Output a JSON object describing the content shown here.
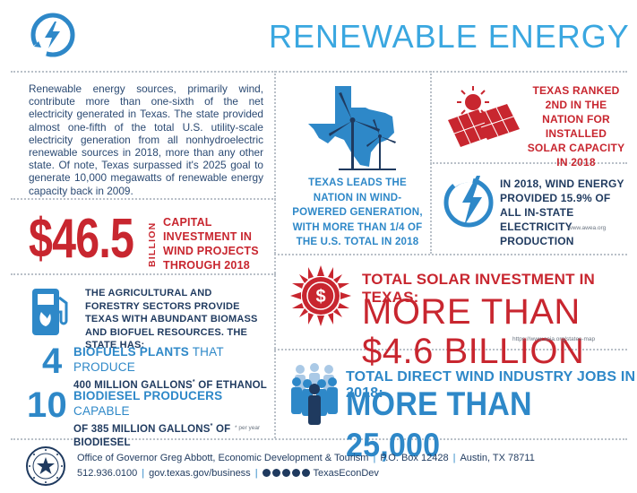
{
  "header": {
    "title": "RENEWABLE ENERGY"
  },
  "intro": {
    "text": "Renewable energy sources, primarily wind, contribute more than one-sixth of the net electricity generated in Texas. The state provided almost one-fifth of the total U.S. utility-scale electricity generation from all nonhydroelectric renewable sources in 2018, more than any other state. Of note, Texas surpassed it's 2025 goal to generate 10,000 megawatts of renewable energy capacity back in 2009."
  },
  "wind_capital": {
    "value": "$46.5",
    "unit": "BILLION",
    "label": "CAPITAL INVESTMENT IN WIND PROJECTS THROUGH 2018"
  },
  "texas_wind": {
    "text": "TEXAS LEADS THE NATION IN WIND-POWERED GENERATION, WITH MORE THAN 1/4  OF THE U.S. TOTAL IN 2018"
  },
  "solar_rank": {
    "text": "TEXAS RANKED 2ND IN THE NATION FOR INSTALLED SOLAR CAPACITY IN 2018"
  },
  "wind_share": {
    "text": "IN 2018, WIND ENERGY PROVIDED 15.9% OF ALL IN-STATE ELECTRICITY PRODUCTION",
    "source": "www.awea.org"
  },
  "solar_investment": {
    "heading": "TOTAL SOLAR INVESTMENT IN TEXAS:",
    "value": "MORE THAN $4.6 BILLION",
    "source": "https://www.seia.org/states-map"
  },
  "agriculture": {
    "text": "THE AGRICULTURAL AND FORESTRY SECTORS PROVIDE TEXAS WITH ABUNDANT BIOMASS AND BIOFUEL RESOURCES. THE STATE HAS:",
    "rows": [
      {
        "number": "4",
        "bold": "BIOFUELS PLANTS",
        "rest_line1": " THAT PRODUCE",
        "line2": "400 MILLION GALLONS",
        "sup": "*",
        "line2b": " OF ETHANOL"
      },
      {
        "number": "10",
        "bold": "BIODIESEL PRODUCERS",
        "rest_line1": " CAPABLE",
        "line2": "OF 385 MILLION GALLONS",
        "sup": "*",
        "line2b": " OF BIODIESEL"
      }
    ],
    "footnote": "* per year"
  },
  "jobs": {
    "heading": "TOTAL DIRECT WIND INDUSTRY JOBS IN 2018:",
    "value": "MORE THAN 25,000"
  },
  "footer": {
    "office": "Office of Governor Greg Abbott, Economic Development & Tourism",
    "po_box": "P.O. Box 12428",
    "city": "Austin, TX 78711",
    "phone": "512.936.0100",
    "website": "gov.texas.gov/business",
    "handle": "TexasEconDev",
    "seal_text": "STATE OF TEXAS · GOVERNOR"
  },
  "colors": {
    "accent_blue": "#2e88c8",
    "title_blue": "#3aa7e0",
    "red": "#c8262f",
    "navy": "#1f3a5f"
  }
}
